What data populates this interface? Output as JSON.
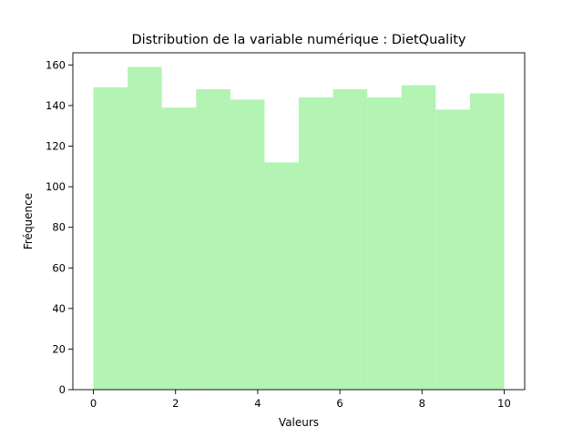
{
  "chart_data": {
    "type": "bar",
    "title": "Distribution de la variable numérique : DietQuality",
    "xlabel": "Valeurs",
    "ylabel": "Fréquence",
    "bin_edges": [
      0,
      0.8333,
      1.6667,
      2.5,
      3.3333,
      4.1667,
      5.0,
      5.8333,
      6.6667,
      7.5,
      8.3333,
      9.1667,
      10.0
    ],
    "values": [
      149,
      159,
      139,
      148,
      143,
      112,
      144,
      148,
      144,
      150,
      138,
      146
    ],
    "xlim": [
      -0.5,
      10.5
    ],
    "ylim": [
      0,
      166
    ],
    "xticks": [
      0,
      2,
      4,
      6,
      8,
      10
    ],
    "yticks": [
      0,
      20,
      40,
      60,
      80,
      100,
      120,
      140,
      160
    ],
    "bar_color": "#b3f3b3",
    "grid": false
  }
}
